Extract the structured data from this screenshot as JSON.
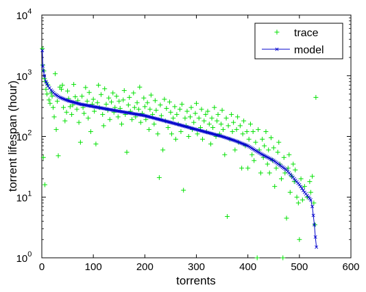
{
  "chart_data": {
    "type": "scatter",
    "xlabel": "torrents",
    "ylabel": "torrent lifespan (hour)",
    "xlim": [
      0,
      600
    ],
    "ylim": [
      1,
      10000
    ],
    "y_scale": "log",
    "grid": false,
    "legend_position": "top-right",
    "x_ticks": [
      {
        "value": 0,
        "label": "0"
      },
      {
        "value": 100,
        "label": "100"
      },
      {
        "value": 200,
        "label": "200"
      },
      {
        "value": 300,
        "label": "300"
      },
      {
        "value": 400,
        "label": "400"
      },
      {
        "value": 500,
        "label": "500"
      },
      {
        "value": 600,
        "label": "600"
      }
    ],
    "y_ticks": [
      {
        "value": 1,
        "base": "10",
        "exp": "0"
      },
      {
        "value": 10,
        "base": "10",
        "exp": "1"
      },
      {
        "value": 100,
        "base": "10",
        "exp": "2"
      },
      {
        "value": 1000,
        "base": "10",
        "exp": "3"
      },
      {
        "value": 10000,
        "base": "10",
        "exp": "4"
      }
    ],
    "series": [
      {
        "name": "trace",
        "marker": "+",
        "color": "#00e000",
        "points": [
          [
            1,
            2800
          ],
          [
            2,
            1500
          ],
          [
            3,
            45
          ],
          [
            4,
            1200
          ],
          [
            5,
            900
          ],
          [
            6,
            16
          ],
          [
            7,
            800
          ],
          [
            8,
            600
          ],
          [
            10,
            500
          ],
          [
            12,
            700
          ],
          [
            14,
            400
          ],
          [
            16,
            350
          ],
          [
            18,
            520
          ],
          [
            20,
            460
          ],
          [
            22,
            300
          ],
          [
            24,
            210
          ],
          [
            26,
            1080
          ],
          [
            28,
            130
          ],
          [
            30,
            380
          ],
          [
            32,
            48
          ],
          [
            35,
            650
          ],
          [
            38,
            600
          ],
          [
            40,
            700
          ],
          [
            42,
            300
          ],
          [
            45,
            180
          ],
          [
            48,
            250
          ],
          [
            50,
            560
          ],
          [
            52,
            420
          ],
          [
            55,
            310
          ],
          [
            58,
            230
          ],
          [
            60,
            330
          ],
          [
            62,
            720
          ],
          [
            65,
            450
          ],
          [
            68,
            280
          ],
          [
            70,
            390
          ],
          [
            72,
            170
          ],
          [
            75,
            80
          ],
          [
            78,
            460
          ],
          [
            80,
            300
          ],
          [
            82,
            240
          ],
          [
            85,
            640
          ],
          [
            88,
            380
          ],
          [
            90,
            200
          ],
          [
            92,
            530
          ],
          [
            95,
            120
          ],
          [
            98,
            340
          ],
          [
            100,
            410
          ],
          [
            102,
            260
          ],
          [
            105,
            75
          ],
          [
            108,
            360
          ],
          [
            110,
            700
          ],
          [
            112,
            300
          ],
          [
            115,
            490
          ],
          [
            118,
            230
          ],
          [
            120,
            150
          ],
          [
            122,
            610
          ],
          [
            125,
            340
          ],
          [
            128,
            270
          ],
          [
            130,
            430
          ],
          [
            132,
            190
          ],
          [
            135,
            370
          ],
          [
            138,
            520
          ],
          [
            140,
            250
          ],
          [
            142,
            300
          ],
          [
            145,
            460
          ],
          [
            148,
            210
          ],
          [
            150,
            380
          ],
          [
            152,
            290
          ],
          [
            155,
            160
          ],
          [
            158,
            400
          ],
          [
            160,
            570
          ],
          [
            162,
            230
          ],
          [
            165,
            55
          ],
          [
            168,
            330
          ],
          [
            170,
            440
          ],
          [
            172,
            260
          ],
          [
            175,
            190
          ],
          [
            178,
            520
          ],
          [
            180,
            300
          ],
          [
            182,
            210
          ],
          [
            185,
            360
          ],
          [
            188,
            280
          ],
          [
            190,
            650
          ],
          [
            192,
            170
          ],
          [
            195,
            240
          ],
          [
            198,
            430
          ],
          [
            200,
            310
          ],
          [
            202,
            190
          ],
          [
            205,
            360
          ],
          [
            208,
            130
          ],
          [
            210,
            280
          ],
          [
            212,
            480
          ],
          [
            215,
            230
          ],
          [
            218,
            160
          ],
          [
            220,
            390
          ],
          [
            222,
            270
          ],
          [
            225,
            110
          ],
          [
            228,
            21
          ],
          [
            230,
            330
          ],
          [
            232,
            220
          ],
          [
            235,
            60
          ],
          [
            238,
            410
          ],
          [
            240,
            180
          ],
          [
            242,
            290
          ],
          [
            245,
            140
          ],
          [
            248,
            370
          ],
          [
            250,
            250
          ],
          [
            252,
            110
          ],
          [
            255,
            200
          ],
          [
            258,
            310
          ],
          [
            260,
            90
          ],
          [
            262,
            230
          ],
          [
            265,
            160
          ],
          [
            268,
            280
          ],
          [
            270,
            120
          ],
          [
            272,
            340
          ],
          [
            275,
            13
          ],
          [
            278,
            200
          ],
          [
            280,
            150
          ],
          [
            282,
            260
          ],
          [
            285,
            100
          ],
          [
            288,
            210
          ],
          [
            290,
            300
          ],
          [
            292,
            130
          ],
          [
            295,
            170
          ],
          [
            298,
            240
          ],
          [
            300,
            350
          ],
          [
            302,
            110
          ],
          [
            305,
            200
          ],
          [
            308,
            140
          ],
          [
            310,
            280
          ],
          [
            312,
            90
          ],
          [
            315,
            180
          ],
          [
            318,
            230
          ],
          [
            320,
            120
          ],
          [
            322,
            260
          ],
          [
            325,
            160
          ],
          [
            328,
            75
          ],
          [
            330,
            200
          ],
          [
            332,
            140
          ],
          [
            335,
            300
          ],
          [
            338,
            100
          ],
          [
            340,
            180
          ],
          [
            342,
            230
          ],
          [
            345,
            110
          ],
          [
            348,
            160
          ],
          [
            350,
            270
          ],
          [
            352,
            130
          ],
          [
            355,
            50
          ],
          [
            358,
            200
          ],
          [
            360,
            4.8
          ],
          [
            362,
            150
          ],
          [
            365,
            90
          ],
          [
            368,
            230
          ],
          [
            370,
            120
          ],
          [
            372,
            170
          ],
          [
            375,
            60
          ],
          [
            378,
            130
          ],
          [
            380,
            210
          ],
          [
            382,
            80
          ],
          [
            385,
            150
          ],
          [
            388,
            30
          ],
          [
            390,
            110
          ],
          [
            392,
            180
          ],
          [
            395,
            70
          ],
          [
            398,
            120
          ],
          [
            400,
            30
          ],
          [
            402,
            90
          ],
          [
            405,
            160
          ],
          [
            408,
            50
          ],
          [
            410,
            120
          ],
          [
            412,
            40
          ],
          [
            415,
            80
          ],
          [
            418,
            1
          ],
          [
            420,
            130
          ],
          [
            422,
            60
          ],
          [
            425,
            25
          ],
          [
            428,
            90
          ],
          [
            430,
            45
          ],
          [
            432,
            70
          ],
          [
            435,
            120
          ],
          [
            438,
            35
          ],
          [
            440,
            60
          ],
          [
            442,
            25
          ],
          [
            445,
            95
          ],
          [
            448,
            40
          ],
          [
            450,
            65
          ],
          [
            452,
            15
          ],
          [
            455,
            30
          ],
          [
            458,
            55
          ],
          [
            460,
            80
          ],
          [
            462,
            35
          ],
          [
            465,
            20
          ],
          [
            468,
            1
          ],
          [
            470,
            45
          ],
          [
            472,
            25
          ],
          [
            475,
            4.5
          ],
          [
            478,
            30
          ],
          [
            480,
            50
          ],
          [
            482,
            12
          ],
          [
            485,
            22
          ],
          [
            488,
            35
          ],
          [
            490,
            18
          ],
          [
            492,
            28
          ],
          [
            495,
            10
          ],
          [
            498,
            8
          ],
          [
            500,
            2
          ],
          [
            503,
            20
          ],
          [
            506,
            9
          ],
          [
            510,
            15
          ],
          [
            515,
            10
          ],
          [
            520,
            18
          ],
          [
            522,
            12
          ],
          [
            525,
            22
          ],
          [
            528,
            8
          ],
          [
            530,
            3.5
          ],
          [
            532,
            440
          ]
        ]
      },
      {
        "name": "model",
        "marker": "x",
        "color": "#0000cc",
        "points": [
          [
            1,
            2600
          ],
          [
            2,
            1450
          ],
          [
            3,
            1200
          ],
          [
            5,
            1000
          ],
          [
            8,
            800
          ],
          [
            12,
            680
          ],
          [
            18,
            580
          ],
          [
            25,
            500
          ],
          [
            35,
            440
          ],
          [
            50,
            390
          ],
          [
            75,
            340
          ],
          [
            100,
            310
          ],
          [
            150,
            260
          ],
          [
            200,
            220
          ],
          [
            250,
            170
          ],
          [
            300,
            130
          ],
          [
            350,
            100
          ],
          [
            375,
            85
          ],
          [
            400,
            70
          ],
          [
            425,
            52
          ],
          [
            450,
            40
          ],
          [
            475,
            28
          ],
          [
            490,
            20
          ],
          [
            500,
            16
          ],
          [
            510,
            12
          ],
          [
            518,
            10
          ],
          [
            522,
            9
          ],
          [
            525,
            7
          ],
          [
            527,
            5
          ],
          [
            529,
            3.5
          ],
          [
            531,
            2.2
          ],
          [
            533,
            1.5
          ]
        ]
      }
    ]
  }
}
